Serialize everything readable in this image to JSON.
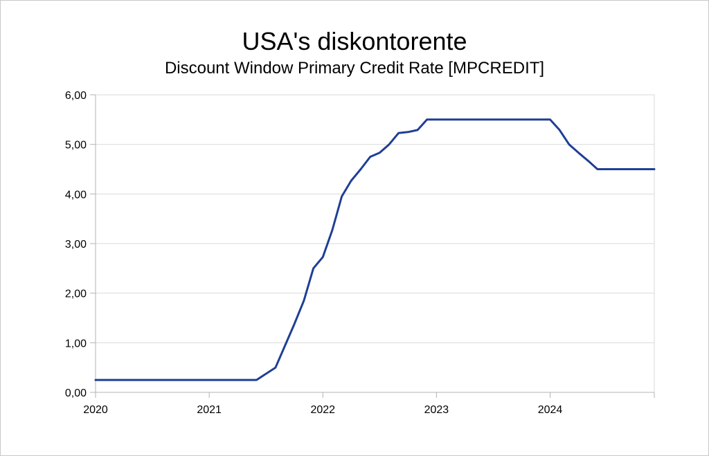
{
  "chart_data": {
    "type": "line",
    "title": "USA's diskontorente",
    "subtitle": "Discount Window Primary Credit Rate [MPCREDIT]",
    "xlabel": "",
    "ylabel": "",
    "x_ticks": [
      "2020",
      "2021",
      "2022",
      "2023",
      "2024"
    ],
    "y_ticks": [
      "0,00",
      "1,00",
      "2,00",
      "3,00",
      "4,00",
      "5,00",
      "6,00"
    ],
    "xlim": [
      "2020-01",
      "2024-12"
    ],
    "ylim": [
      0,
      6
    ],
    "grid": true,
    "legend": "none",
    "colors": {
      "series": "#1f3f94",
      "grid": "#d9d9d9",
      "axis": "#b3b3b3"
    },
    "series": [
      {
        "x": [
          "2020-01",
          "2021-06",
          "2021-08",
          "2021-10",
          "2021-11",
          "2021-12",
          "2022-01",
          "2022-02",
          "2022-03",
          "2022-04",
          "2022-05",
          "2022-06",
          "2022-07",
          "2022-08",
          "2022-09",
          "2022-10",
          "2022-11",
          "2022-12",
          "2023-01",
          "2023-02",
          "2023-03",
          "2023-04",
          "2023-05",
          "2023-06",
          "2023-07",
          "2023-08",
          "2023-09",
          "2023-10",
          "2023-11",
          "2023-12",
          "2024-01",
          "2024-02",
          "2024-03",
          "2024-04",
          "2024-05",
          "2024-06",
          "2024-07",
          "2024-08",
          "2024-09",
          "2024-10",
          "2024-11",
          "2024-12"
        ],
        "y": [
          0.25,
          0.25,
          0.5,
          1.38,
          1.85,
          2.5,
          2.73,
          3.27,
          3.95,
          4.27,
          4.5,
          4.75,
          4.83,
          5.0,
          5.23,
          5.25,
          5.29,
          5.5,
          5.5,
          5.5,
          5.5,
          5.5,
          5.5,
          5.5,
          5.5,
          5.5,
          5.5,
          5.5,
          5.5,
          5.5,
          5.5,
          5.29,
          5.0,
          4.83,
          4.67,
          4.5,
          4.5,
          4.5,
          4.5,
          4.5,
          4.5,
          4.5
        ]
      }
    ]
  }
}
